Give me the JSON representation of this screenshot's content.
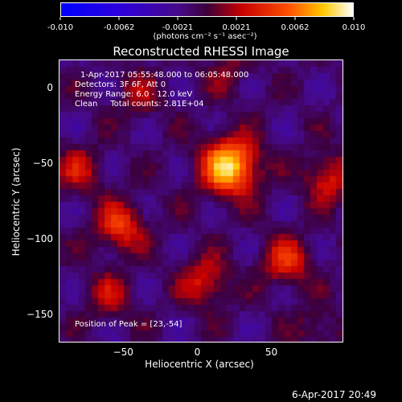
{
  "title": "Reconstructed RHESSI Image",
  "info": {
    "time_range": "1-Apr-2017 05:55:48.000 to 06:05:48.000",
    "detectors": "Detectors: 3F 6F, Att 0",
    "energy": "Energy Range: 6.0 - 12.0 keV",
    "clean": "Clean     Total counts: 2.81E+04",
    "peak": "Position of Peak = [23,-54]"
  },
  "timestamp": "6-Apr-2017 20:49",
  "colorbar": {
    "ticks": [
      "-0.010",
      "-0.0062",
      "-0.0021",
      "0.0021",
      "0.0062",
      "0.010"
    ],
    "unit_label": "(photons cm⁻² s⁻¹ asec⁻²)",
    "range": [
      -0.01,
      0.01
    ]
  },
  "chart_data": {
    "type": "heatmap",
    "title": "Reconstructed RHESSI Image",
    "xlabel": "Heliocentric X (arcsec)",
    "ylabel": "Heliocentric Y (arcsec)",
    "xlim": [
      -93,
      98
    ],
    "ylim": [
      -168,
      18
    ],
    "x_ticks": [
      -50,
      0,
      50
    ],
    "y_ticks": [
      0,
      -50,
      -100,
      -150
    ],
    "value_range": [
      -0.01,
      0.01
    ],
    "colormap": "RHESSI red-temperature (blue negative, red/yellow/white positive)",
    "peak_position": [
      23,
      -54
    ],
    "sources": [
      {
        "x": 22,
        "y": -52,
        "amplitude": 0.01
      },
      {
        "x": -52,
        "y": -92,
        "amplitude": 0.0055
      },
      {
        "x": 60,
        "y": -115,
        "amplitude": 0.005
      },
      {
        "x": 5,
        "y": -128,
        "amplitude": 0.0045
      },
      {
        "x": -60,
        "y": -138,
        "amplitude": 0.003
      },
      {
        "x": -80,
        "y": -55,
        "amplitude": 0.0035
      },
      {
        "x": 88,
        "y": -60,
        "amplitude": 0.0045
      },
      {
        "x": -40,
        "y": -5,
        "amplitude": 0.0025
      },
      {
        "x": 20,
        "y": 10,
        "amplitude": 0.002
      },
      {
        "x": 80,
        "y": -160,
        "amplitude": 0.002
      }
    ]
  }
}
